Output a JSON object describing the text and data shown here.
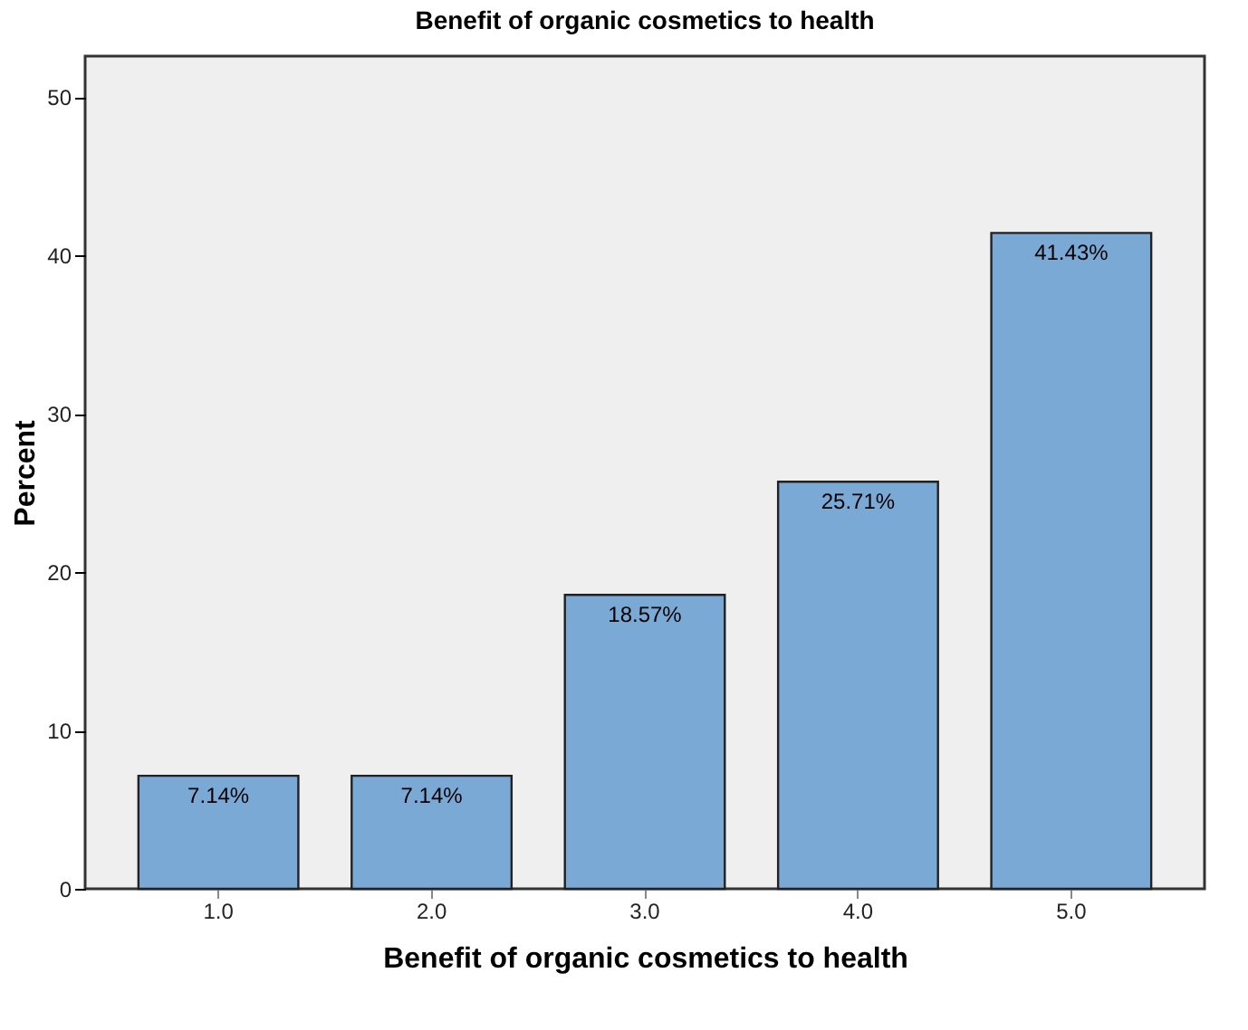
{
  "chart_data": {
    "type": "bar",
    "title": "Benefit of organic cosmetics to health",
    "xlabel": "Benefit of organic cosmetics to health",
    "ylabel": "Percent",
    "categories": [
      "1.0",
      "2.0",
      "3.0",
      "4.0",
      "5.0"
    ],
    "values": [
      7.14,
      7.14,
      18.57,
      25.71,
      41.43
    ],
    "value_labels": [
      "7.14%",
      "7.14%",
      "18.57%",
      "25.71%",
      "41.43%"
    ],
    "color": "#7ba9d6",
    "ylim": [
      0,
      52.6
    ],
    "yticks": [
      0,
      10,
      20,
      30,
      40,
      50
    ],
    "grid": false
  }
}
